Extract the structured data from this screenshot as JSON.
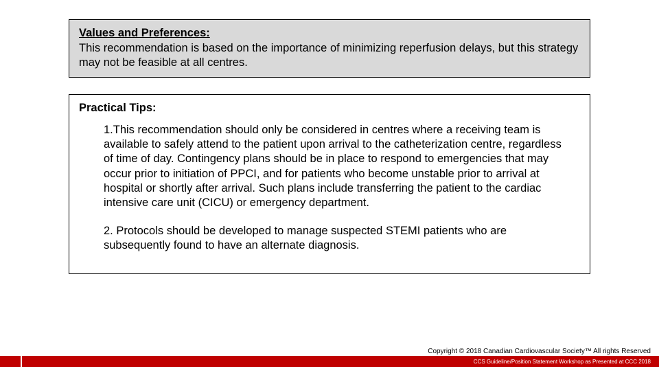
{
  "values_box": {
    "heading": "Values and Preferences:",
    "body": "This recommendation is based on the importance of minimizing reperfusion delays, but this strategy may not be feasible at all centres."
  },
  "tips_box": {
    "heading": "Practical Tips:",
    "items": [
      "1.This recommendation should only be considered in centres where a receiving team is available to safely attend to the patient upon arrival to the catheterization centre, regardless of time of day. Contingency plans should be in place to respond to emergencies that may occur prior to initiation of PPCI, and for patients who become unstable prior to arrival at hospital or shortly after arrival. Such plans include transferring the patient to the cardiac intensive care unit (CICU) or emergency department.",
      "2. Protocols should be developed to manage suspected STEMI patients who are subsequently found to have an alternate diagnosis."
    ]
  },
  "footer": {
    "copyright": "Copyright © 2018 Canadian Cardiovascular Society™ All rights Reserved",
    "bar_text": "CCS Guideline/Position Statement Workshop as Presented at CCC 2018"
  },
  "colors": {
    "grey_bg": "#d9d9d9",
    "red_bar": "#c00000"
  }
}
